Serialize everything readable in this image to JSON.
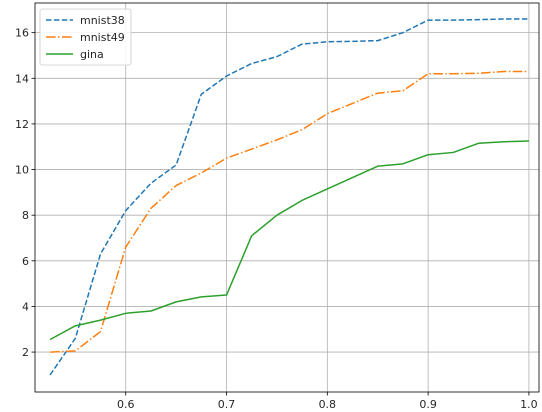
{
  "chart_data": {
    "type": "line",
    "title": "",
    "xlabel": "",
    "ylabel": "",
    "xlim": [
      0.51,
      1.01
    ],
    "ylim": [
      0.25,
      17.3
    ],
    "xticks": [
      0.6,
      0.7,
      0.8,
      0.9,
      1.0
    ],
    "xtick_labels": [
      "0.6",
      "0.7",
      "0.8",
      "0.9",
      "1.0"
    ],
    "yticks": [
      2,
      4,
      6,
      8,
      10,
      12,
      14,
      16
    ],
    "ytick_labels": [
      "2",
      "4",
      "6",
      "8",
      "10",
      "12",
      "14",
      "16"
    ],
    "grid": true,
    "legend": "top-left",
    "x": [
      0.525,
      0.55,
      0.575,
      0.6,
      0.625,
      0.65,
      0.675,
      0.7,
      0.725,
      0.75,
      0.775,
      0.8,
      0.825,
      0.85,
      0.875,
      0.9,
      0.925,
      0.95,
      0.975,
      1.0
    ],
    "series": [
      {
        "name": "mnist38",
        "color": "#1f77b4",
        "dash": "dashed",
        "values": [
          1.0,
          2.6,
          6.3,
          8.2,
          9.4,
          10.2,
          13.3,
          14.1,
          14.65,
          14.95,
          15.5,
          15.6,
          15.62,
          15.65,
          16.0,
          16.55,
          16.55,
          16.57,
          16.6,
          16.6
        ]
      },
      {
        "name": "mnist49",
        "color": "#ff7f0e",
        "dash": "dashdot",
        "values": [
          2.0,
          2.05,
          2.9,
          6.6,
          8.3,
          9.3,
          9.85,
          10.5,
          10.9,
          11.3,
          11.75,
          12.45,
          12.9,
          13.35,
          13.45,
          14.2,
          14.2,
          14.22,
          14.3,
          14.3
        ]
      },
      {
        "name": "gina",
        "color": "#2ca02c",
        "dash": "solid",
        "values": [
          2.55,
          3.15,
          3.4,
          3.7,
          3.8,
          4.2,
          4.42,
          4.5,
          7.1,
          8.0,
          8.65,
          9.15,
          9.65,
          10.15,
          10.25,
          10.65,
          10.75,
          11.15,
          11.22,
          11.25
        ]
      }
    ]
  }
}
